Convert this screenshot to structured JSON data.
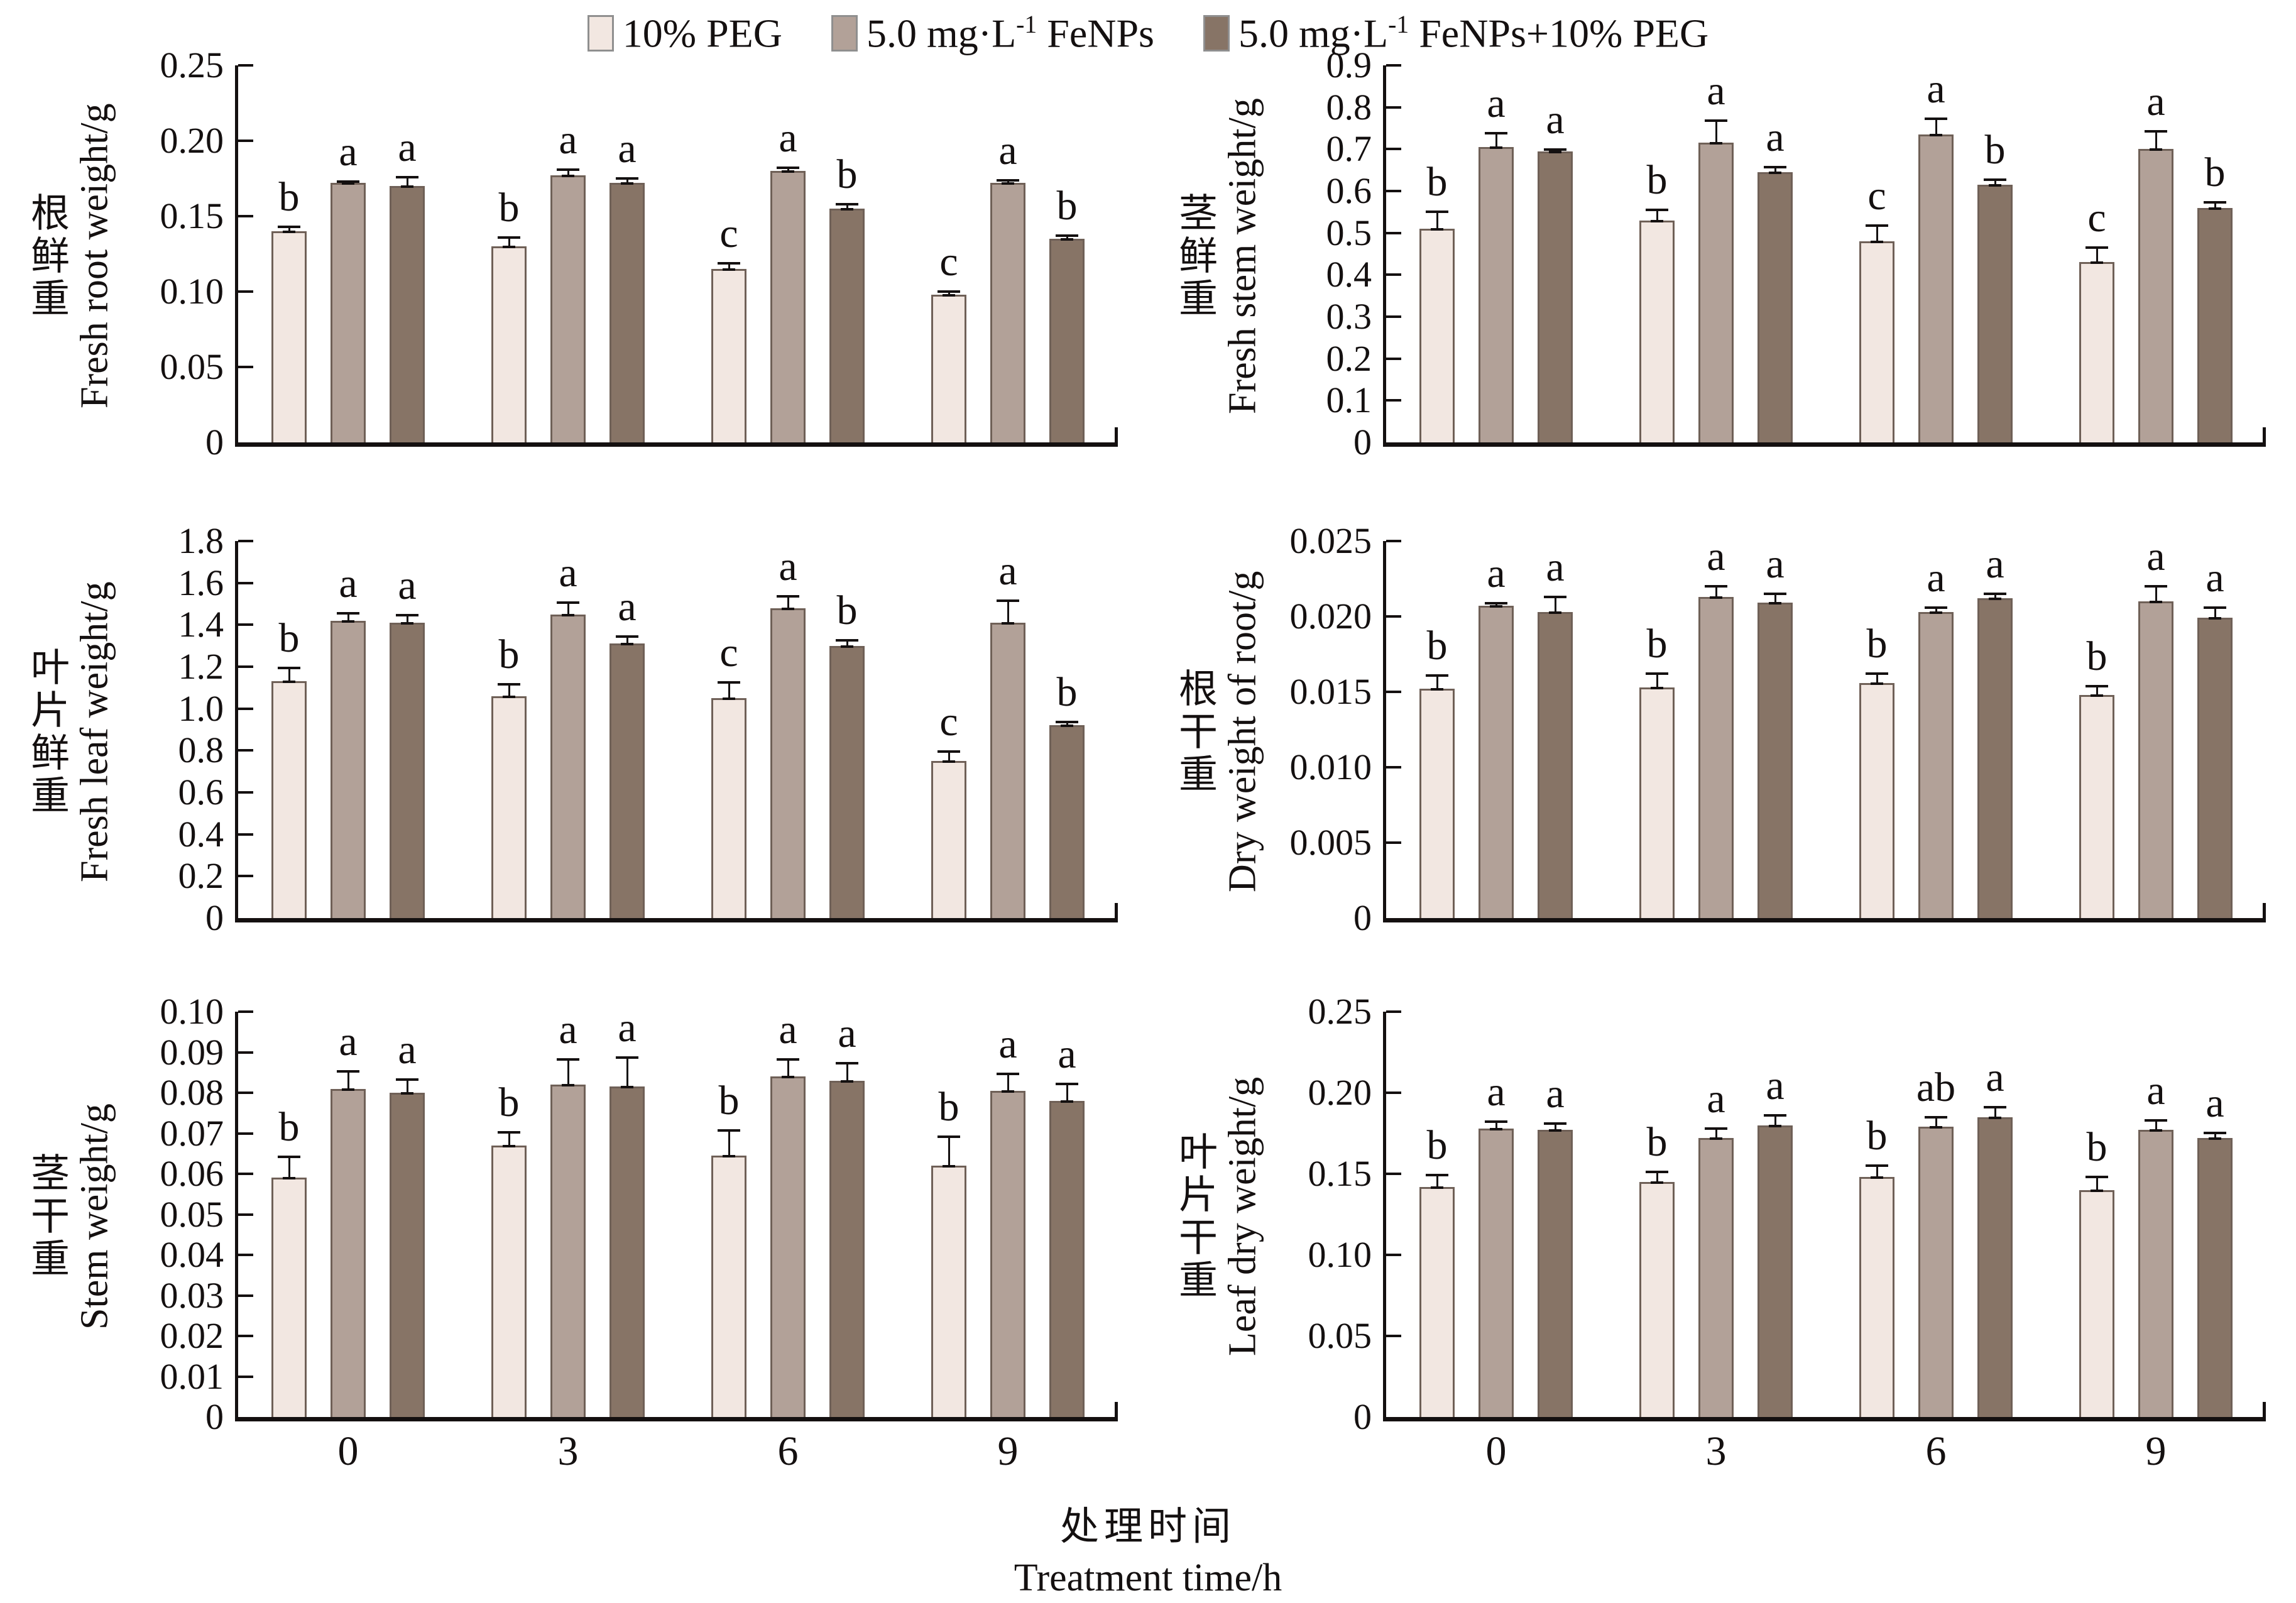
{
  "colors": {
    "bar_fills": [
      "#f2e7e1",
      "#b2a198",
      "#877466"
    ],
    "bar_border": "#6f6057",
    "ink": "#141010",
    "swatch_border": "#8f8f8f"
  },
  "legend": {
    "items": [
      {
        "pre": "10% PEG",
        "sup": "",
        "post": ""
      },
      {
        "pre": "5.0 mg·L",
        "sup": "-1",
        "post": " FeNPs"
      },
      {
        "pre": "5.0 mg·L",
        "sup": "-1",
        "post": " FeNPs+10% PEG"
      }
    ]
  },
  "xaxis": {
    "title_zh": "处理时间",
    "title_en": "Treatment time/h",
    "categories": [
      "0",
      "3",
      "6",
      "9"
    ]
  },
  "chart_data": [
    {
      "type": "bar",
      "ylabel_zh": "根鲜重",
      "ylabel_en": "Fresh root weight/g",
      "ylim": [
        0,
        0.25
      ],
      "yticks": [
        "0",
        "0.05",
        "0.10",
        "0.15",
        "0.20",
        "0.25"
      ],
      "categories": [
        "0",
        "3",
        "6",
        "9"
      ],
      "show_xticks": false,
      "series": [
        {
          "name": "10% PEG",
          "values": [
            0.14,
            0.13,
            0.115,
            0.098
          ],
          "err": [
            0.005,
            0.008,
            0.006,
            0.004
          ],
          "letters": [
            "b",
            "b",
            "c",
            "c"
          ]
        },
        {
          "name": "5.0 mg·L⁻¹ FeNPs",
          "values": [
            0.172,
            0.177,
            0.18,
            0.172
          ],
          "err": [
            0.003,
            0.006,
            0.004,
            0.004
          ],
          "letters": [
            "a",
            "a",
            "a",
            "a"
          ]
        },
        {
          "name": "5.0 mg·L⁻¹ FeNPs+10% PEG",
          "values": [
            0.17,
            0.172,
            0.155,
            0.135
          ],
          "err": [
            0.008,
            0.005,
            0.005,
            0.004
          ],
          "letters": [
            "a",
            "a",
            "b",
            "b"
          ]
        }
      ]
    },
    {
      "type": "bar",
      "ylabel_zh": "茎鲜重",
      "ylabel_en": "Fresh stem weight/g",
      "ylim": [
        0,
        0.9
      ],
      "yticks": [
        "0",
        "0.1",
        "0.2",
        "0.3",
        "0.4",
        "0.5",
        "0.6",
        "0.7",
        "0.8",
        "0.9"
      ],
      "categories": [
        "0",
        "3",
        "6",
        "9"
      ],
      "show_xticks": false,
      "series": [
        {
          "name": "10% PEG",
          "values": [
            0.51,
            0.53,
            0.48,
            0.43
          ],
          "err": [
            0.048,
            0.032,
            0.045,
            0.042
          ],
          "letters": [
            "b",
            "b",
            "c",
            "c"
          ]
        },
        {
          "name": "5.0 mg·L⁻¹ FeNPs",
          "values": [
            0.705,
            0.715,
            0.735,
            0.7
          ],
          "err": [
            0.04,
            0.06,
            0.045,
            0.05
          ],
          "letters": [
            "a",
            "a",
            "a",
            "a"
          ]
        },
        {
          "name": "5.0 mg·L⁻¹ FeNPs+10% PEG",
          "values": [
            0.695,
            0.645,
            0.615,
            0.56
          ],
          "err": [
            0.012,
            0.02,
            0.02,
            0.02
          ],
          "letters": [
            "a",
            "a",
            "b",
            "b"
          ]
        }
      ]
    },
    {
      "type": "bar",
      "ylabel_zh": "叶片鲜重",
      "ylabel_en": "Fresh leaf weight/g",
      "ylim": [
        0,
        1.8
      ],
      "yticks": [
        "0",
        "0.2",
        "0.4",
        "0.6",
        "0.8",
        "1.0",
        "1.2",
        "1.4",
        "1.6",
        "1.8"
      ],
      "categories": [
        "0",
        "3",
        "6",
        "9"
      ],
      "show_xticks": false,
      "series": [
        {
          "name": "10% PEG",
          "values": [
            1.13,
            1.06,
            1.05,
            0.75
          ],
          "err": [
            0.08,
            0.07,
            0.09,
            0.06
          ],
          "letters": [
            "b",
            "b",
            "c",
            "c"
          ]
        },
        {
          "name": "5.0 mg·L⁻¹ FeNPs",
          "values": [
            1.42,
            1.45,
            1.48,
            1.41
          ],
          "err": [
            0.05,
            0.07,
            0.07,
            0.12
          ],
          "letters": [
            "a",
            "a",
            "a",
            "a"
          ]
        },
        {
          "name": "5.0 mg·L⁻¹ FeNPs+10% PEG",
          "values": [
            1.41,
            1.31,
            1.3,
            0.92
          ],
          "err": [
            0.05,
            0.05,
            0.04,
            0.03
          ],
          "letters": [
            "a",
            "a",
            "b",
            "b"
          ]
        }
      ]
    },
    {
      "type": "bar",
      "ylabel_zh": "根干重",
      "ylabel_en": "Dry weight of root/g",
      "ylim": [
        0,
        0.025
      ],
      "yticks": [
        "0",
        "0.005",
        "0.010",
        "0.015",
        "0.020",
        "0.025"
      ],
      "categories": [
        "0",
        "3",
        "6",
        "9"
      ],
      "show_xticks": false,
      "series": [
        {
          "name": "10% PEG",
          "values": [
            0.0152,
            0.0153,
            0.0156,
            0.0148
          ],
          "err": [
            0.0011,
            0.0011,
            0.0008,
            0.0008
          ],
          "letters": [
            "b",
            "b",
            "b",
            "b"
          ]
        },
        {
          "name": "5.0 mg·L⁻¹ FeNPs",
          "values": [
            0.0207,
            0.0213,
            0.0203,
            0.021
          ],
          "err": [
            0.0004,
            0.0009,
            0.0005,
            0.0012
          ],
          "letters": [
            "a",
            "a",
            "a",
            "a"
          ]
        },
        {
          "name": "5.0 mg·L⁻¹ FeNPs+10% PEG",
          "values": [
            0.0203,
            0.0209,
            0.0212,
            0.0199
          ],
          "err": [
            0.0012,
            0.0008,
            0.0005,
            0.0009
          ],
          "letters": [
            "a",
            "a",
            "a",
            "a"
          ]
        }
      ]
    },
    {
      "type": "bar",
      "ylabel_zh": "茎干重",
      "ylabel_en": "Stem weight/g",
      "ylim": [
        0,
        0.1
      ],
      "yticks": [
        "0",
        "0.01",
        "0.02",
        "0.03",
        "0.04",
        "0.05",
        "0.06",
        "0.07",
        "0.08",
        "0.09",
        "0.10"
      ],
      "categories": [
        "0",
        "3",
        "6",
        "9"
      ],
      "show_xticks": true,
      "series": [
        {
          "name": "10% PEG",
          "values": [
            0.059,
            0.067,
            0.0645,
            0.062
          ],
          "err": [
            0.006,
            0.004,
            0.007,
            0.008
          ],
          "letters": [
            "b",
            "b",
            "b",
            "b"
          ]
        },
        {
          "name": "5.0 mg·L⁻¹ FeNPs",
          "values": [
            0.081,
            0.082,
            0.084,
            0.0805
          ],
          "err": [
            0.005,
            0.007,
            0.005,
            0.005
          ],
          "letters": [
            "a",
            "a",
            "a",
            "a"
          ]
        },
        {
          "name": "5.0 mg·L⁻¹ FeNPs+10% PEG",
          "values": [
            0.08,
            0.0815,
            0.083,
            0.078
          ],
          "err": [
            0.004,
            0.008,
            0.005,
            0.005
          ],
          "letters": [
            "a",
            "a",
            "a",
            "a"
          ]
        }
      ]
    },
    {
      "type": "bar",
      "ylabel_zh": "叶片干重",
      "ylabel_en": "Leaf dry weight/g",
      "ylim": [
        0,
        0.25
      ],
      "yticks": [
        "0",
        "0.05",
        "0.10",
        "0.15",
        "0.20",
        "0.25"
      ],
      "categories": [
        "0",
        "3",
        "6",
        "9"
      ],
      "show_xticks": true,
      "series": [
        {
          "name": "10% PEG",
          "values": [
            0.142,
            0.145,
            0.148,
            0.14
          ],
          "err": [
            0.009,
            0.008,
            0.009,
            0.01
          ],
          "letters": [
            "b",
            "b",
            "b",
            "b"
          ]
        },
        {
          "name": "5.0 mg·L⁻¹ FeNPs",
          "values": [
            0.178,
            0.172,
            0.179,
            0.177
          ],
          "err": [
            0.006,
            0.008,
            0.008,
            0.008
          ],
          "letters": [
            "a",
            "a",
            "ab",
            "a"
          ]
        },
        {
          "name": "5.0 mg·L⁻¹ FeNPs+10% PEG",
          "values": [
            0.177,
            0.18,
            0.185,
            0.172
          ],
          "err": [
            0.006,
            0.008,
            0.008,
            0.005
          ],
          "letters": [
            "a",
            "a",
            "a",
            "a"
          ]
        }
      ]
    }
  ]
}
